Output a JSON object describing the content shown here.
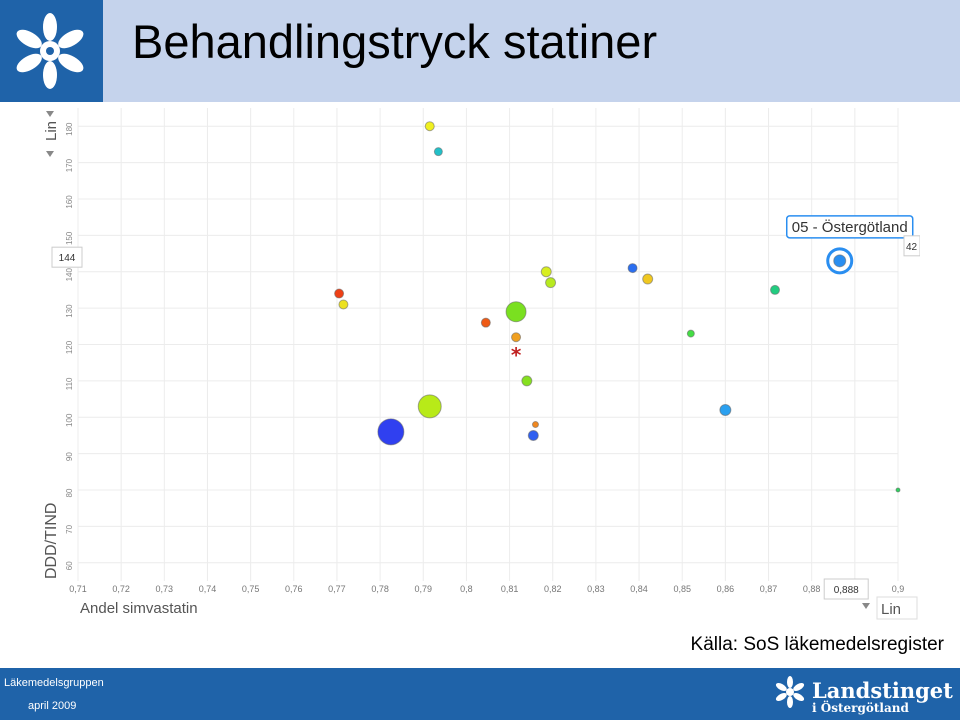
{
  "header": {
    "title": "Behandlingstryck statiner"
  },
  "source": "Källa: SoS läkemedelsregister",
  "footer": {
    "group": "Läkemedelsgruppen",
    "date": "april 2009",
    "brand": "Landstinget",
    "brand_sub": "i Östergötland"
  },
  "colors": {
    "header_bg": "#c5d3ec",
    "brand_blue": "#1f63a9"
  },
  "chart_data": {
    "type": "scatter",
    "xlabel": "Andel simvastatin",
    "ylabel": "DDD/TIND",
    "x_scale_label": "Lin",
    "y_scale_label": "Lin",
    "xlim": [
      0.71,
      0.9
    ],
    "ylim": [
      55,
      185
    ],
    "x_ticks": [
      "0,71",
      "0,72",
      "0,73",
      "0,74",
      "0,75",
      "0,76",
      "0,77",
      "0,78",
      "0,79",
      "0,8",
      "0,81",
      "0,82",
      "0,83",
      "0,84",
      "0,85",
      "0,86",
      "0,87",
      "0,88",
      "0,89",
      "0,9"
    ],
    "y_ticks": [
      "60",
      "70",
      "80",
      "90",
      "100",
      "110",
      "120",
      "130",
      "140",
      "150",
      "160",
      "170",
      "180"
    ],
    "y_highlight": "144",
    "x_highlight": "0,888",
    "right_value_label": "42",
    "highlight_label": "05 - Östergötland",
    "marker": "*",
    "marker_point": {
      "x": 0.8115,
      "y": 118
    },
    "points": [
      {
        "x": 0.7915,
        "y": 180,
        "size": 9,
        "color": "#f0f020"
      },
      {
        "x": 0.7935,
        "y": 173,
        "size": 8,
        "color": "#22c0c8"
      },
      {
        "x": 0.7705,
        "y": 134,
        "size": 9,
        "color": "#ee4015"
      },
      {
        "x": 0.7715,
        "y": 131,
        "size": 9,
        "color": "#ece120"
      },
      {
        "x": 0.8045,
        "y": 126,
        "size": 9,
        "color": "#ee5a15"
      },
      {
        "x": 0.8115,
        "y": 129,
        "size": 20,
        "color": "#7ae020"
      },
      {
        "x": 0.8115,
        "y": 122,
        "size": 9,
        "color": "#f0a020"
      },
      {
        "x": 0.8185,
        "y": 140,
        "size": 10,
        "color": "#d8ee20"
      },
      {
        "x": 0.8195,
        "y": 137,
        "size": 10,
        "color": "#b8ea20"
      },
      {
        "x": 0.8385,
        "y": 141,
        "size": 9,
        "color": "#2a6ef0"
      },
      {
        "x": 0.842,
        "y": 138,
        "size": 10,
        "color": "#f0c820"
      },
      {
        "x": 0.8865,
        "y": 143,
        "size": 12,
        "color": "#2a8ef0"
      },
      {
        "x": 0.8715,
        "y": 135,
        "size": 9,
        "color": "#22cc80"
      },
      {
        "x": 0.852,
        "y": 123,
        "size": 7,
        "color": "#44dd44"
      },
      {
        "x": 0.814,
        "y": 110,
        "size": 10,
        "color": "#86e020"
      },
      {
        "x": 0.7825,
        "y": 96,
        "size": 26,
        "color": "#3040f0"
      },
      {
        "x": 0.7915,
        "y": 103,
        "size": 23,
        "color": "#b8ea18"
      },
      {
        "x": 0.816,
        "y": 98,
        "size": 6,
        "color": "#f08820"
      },
      {
        "x": 0.8155,
        "y": 95,
        "size": 10,
        "color": "#3060f0"
      },
      {
        "x": 0.86,
        "y": 102,
        "size": 11,
        "color": "#2aa0f0"
      },
      {
        "x": 0.9,
        "y": 80,
        "size": 4,
        "color": "#30d060"
      }
    ]
  }
}
